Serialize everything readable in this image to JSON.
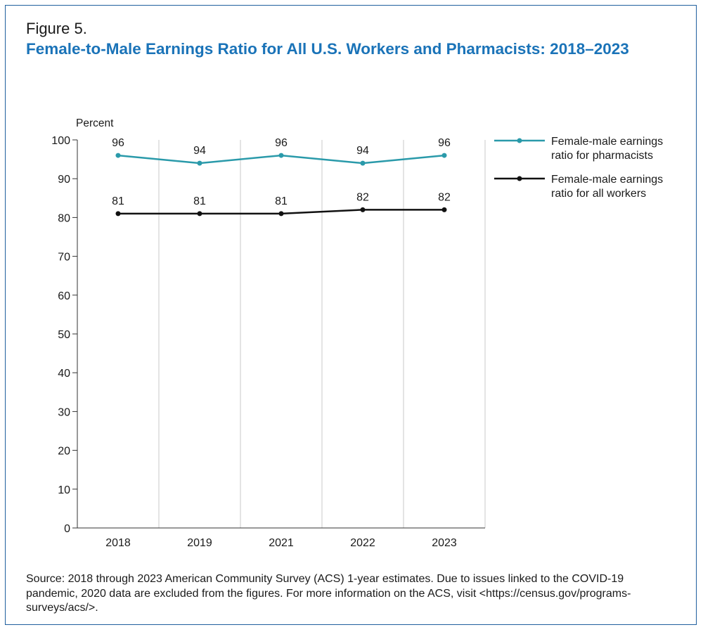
{
  "figure_label": "Figure 5.",
  "figure_title": "Female-to-Male Earnings Ratio for All U.S. Workers and Pharmacists: 2018–2023",
  "source_note": "Source: 2018 through 2023 American Community Survey (ACS) 1-year estimates. Due to issues linked to the COVID-19 pandemic, 2020 data are excluded from the figures. For more information on the ACS, visit <https://census.gov/programs-surveys/acs/>.",
  "colors": {
    "pharmacists": "#2a9aaa",
    "all_workers": "#111111",
    "title": "#1a73b8",
    "border": "#1f5f9e"
  },
  "chart_data": {
    "type": "line",
    "title": "Female-to-Male Earnings Ratio for All U.S. Workers and Pharmacists: 2018–2023",
    "ylabel": "Percent",
    "xlabel": "",
    "categories": [
      "2018",
      "2019",
      "2021",
      "2022",
      "2023"
    ],
    "ylim": [
      0,
      100
    ],
    "yticks": [
      0,
      10,
      20,
      30,
      40,
      50,
      60,
      70,
      80,
      90,
      100
    ],
    "grid": "vertical",
    "legend_position": "right",
    "series": [
      {
        "name": "Female-male earnings ratio for pharmacists",
        "legend_lines": [
          "Female-male earnings",
          "ratio for pharmacists"
        ],
        "color": "#2a9aaa",
        "values": [
          96,
          94,
          96,
          94,
          96
        ]
      },
      {
        "name": "Female-male earnings ratio for all workers",
        "legend_lines": [
          "Female-male earnings",
          "ratio for all workers"
        ],
        "color": "#111111",
        "values": [
          81,
          81,
          81,
          82,
          82
        ]
      }
    ]
  }
}
